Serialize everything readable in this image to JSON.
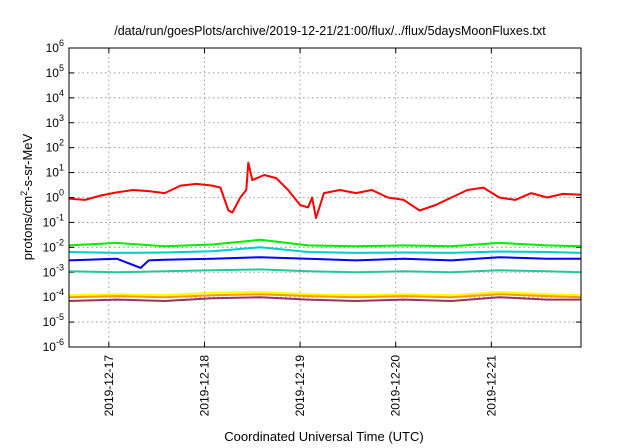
{
  "chart_data": {
    "type": "line",
    "title": "/data/run/goesPlots/archive/2019-12-21/21:00/flux/../flux/5daysMoonFluxes.txt",
    "xlabel": "Coordinated Universal Time (UTC)",
    "ylabel": {
      "base": "protons/cm",
      "sup": "2",
      "rest": "-s-sr-MeV"
    },
    "y_scale": "log",
    "ylim": [
      1e-06,
      1000000.0
    ],
    "y_ticks": [
      {
        "exp": "-6",
        "value": 1e-06
      },
      {
        "exp": "-5",
        "value": 1e-05
      },
      {
        "exp": "-4",
        "value": 0.0001
      },
      {
        "exp": "-3",
        "value": 0.001
      },
      {
        "exp": "-2",
        "value": 0.01
      },
      {
        "exp": "-1",
        "value": 0.1
      },
      {
        "exp": "0",
        "value": 1
      },
      {
        "exp": "1",
        "value": 10
      },
      {
        "exp": "2",
        "value": 100
      },
      {
        "exp": "3",
        "value": 1000
      },
      {
        "exp": "4",
        "value": 10000
      },
      {
        "exp": "5",
        "value": 100000
      },
      {
        "exp": "6",
        "value": 1000000
      }
    ],
    "x_ticks": [
      "2019-12-17",
      "2019-12-18",
      "2019-12-19",
      "2019-12-20",
      "2019-12-21"
    ],
    "xlim": [
      "2019-12-16 14:00",
      "2019-12-21 22:30"
    ],
    "grid": true,
    "legend": "none",
    "series": [
      {
        "color": "#ff0000",
        "x": [
          "2019-12-16 14:00",
          "2019-12-16 18:00",
          "2019-12-16 22:00",
          "2019-12-17 02:00",
          "2019-12-17 06:00",
          "2019-12-17 10:00",
          "2019-12-17 14:00",
          "2019-12-17 18:00",
          "2019-12-17 22:00",
          "2019-12-18 02:00",
          "2019-12-18 04:00",
          "2019-12-18 06:00",
          "2019-12-18 07:00",
          "2019-12-18 09:00",
          "2019-12-18 10:30",
          "2019-12-18 11:00",
          "2019-12-18 12:00",
          "2019-12-18 15:00",
          "2019-12-18 18:00",
          "2019-12-18 21:00",
          "2019-12-19 00:00",
          "2019-12-19 02:00",
          "2019-12-19 03:00",
          "2019-12-19 04:00",
          "2019-12-19 06:00",
          "2019-12-19 10:00",
          "2019-12-19 14:00",
          "2019-12-19 18:00",
          "2019-12-19 22:00",
          "2019-12-20 02:00",
          "2019-12-20 06:00",
          "2019-12-20 10:00",
          "2019-12-20 14:00",
          "2019-12-20 18:00",
          "2019-12-20 22:00",
          "2019-12-21 02:00",
          "2019-12-21 06:00",
          "2019-12-21 10:00",
          "2019-12-21 14:00",
          "2019-12-21 18:00",
          "2019-12-21 22:30"
        ],
        "y": [
          0.9,
          0.8,
          1.2,
          1.6,
          2.0,
          1.8,
          1.5,
          3.0,
          3.5,
          3.0,
          2.5,
          0.3,
          0.25,
          1.0,
          2.0,
          25.0,
          5.0,
          8.0,
          6.0,
          2.0,
          0.5,
          0.4,
          1.0,
          0.15,
          1.5,
          2.0,
          1.5,
          2.0,
          1.0,
          0.8,
          0.3,
          0.5,
          1.0,
          2.0,
          2.5,
          1.0,
          0.8,
          1.5,
          1.0,
          1.4,
          1.3
        ]
      },
      {
        "color": "#00ee00",
        "x": [
          "2019-12-16 14:00",
          "2019-12-17 02:00",
          "2019-12-17 14:00",
          "2019-12-18 02:00",
          "2019-12-18 14:00",
          "2019-12-19 02:00",
          "2019-12-19 14:00",
          "2019-12-20 02:00",
          "2019-12-20 14:00",
          "2019-12-21 02:00",
          "2019-12-21 14:00",
          "2019-12-21 22:30"
        ],
        "y": [
          0.012,
          0.015,
          0.011,
          0.013,
          0.02,
          0.012,
          0.011,
          0.012,
          0.011,
          0.015,
          0.012,
          0.011
        ]
      },
      {
        "color": "#00cccc",
        "x": [
          "2019-12-16 14:00",
          "2019-12-17 02:00",
          "2019-12-17 14:00",
          "2019-12-18 02:00",
          "2019-12-18 14:00",
          "2019-12-19 02:00",
          "2019-12-19 14:00",
          "2019-12-20 02:00",
          "2019-12-20 14:00",
          "2019-12-21 02:00",
          "2019-12-21 14:00",
          "2019-12-21 22:30"
        ],
        "y": [
          0.0065,
          0.006,
          0.0062,
          0.007,
          0.01,
          0.0065,
          0.006,
          0.0062,
          0.006,
          0.0068,
          0.0065,
          0.006
        ]
      },
      {
        "color": "#0000ff",
        "x": [
          "2019-12-16 14:00",
          "2019-12-17 02:00",
          "2019-12-17 08:00",
          "2019-12-17 10:00",
          "2019-12-17 14:00",
          "2019-12-18 02:00",
          "2019-12-18 14:00",
          "2019-12-19 02:00",
          "2019-12-19 14:00",
          "2019-12-20 02:00",
          "2019-12-20 14:00",
          "2019-12-21 02:00",
          "2019-12-21 14:00",
          "2019-12-21 22:30"
        ],
        "y": [
          0.003,
          0.0035,
          0.0015,
          0.003,
          0.0032,
          0.0035,
          0.004,
          0.0035,
          0.003,
          0.0035,
          0.003,
          0.004,
          0.0035,
          0.0035
        ]
      },
      {
        "color": "#20c8a0",
        "x": [
          "2019-12-16 14:00",
          "2019-12-17 02:00",
          "2019-12-17 14:00",
          "2019-12-18 02:00",
          "2019-12-18 14:00",
          "2019-12-19 02:00",
          "2019-12-19 14:00",
          "2019-12-20 02:00",
          "2019-12-20 14:00",
          "2019-12-21 02:00",
          "2019-12-21 14:00",
          "2019-12-21 22:30"
        ],
        "y": [
          0.0011,
          0.001,
          0.0011,
          0.0012,
          0.0013,
          0.0011,
          0.001,
          0.0011,
          0.001,
          0.0012,
          0.0011,
          0.001
        ]
      },
      {
        "color": "#ffff00",
        "x": [
          "2019-12-16 14:00",
          "2019-12-17 02:00",
          "2019-12-17 14:00",
          "2019-12-18 02:00",
          "2019-12-18 14:00",
          "2019-12-19 02:00",
          "2019-12-19 14:00",
          "2019-12-20 02:00",
          "2019-12-20 14:00",
          "2019-12-21 02:00",
          "2019-12-21 14:00",
          "2019-12-21 22:30"
        ],
        "y": [
          0.00012,
          0.00013,
          0.00012,
          0.00015,
          0.00016,
          0.00013,
          0.00012,
          0.00013,
          0.00012,
          0.00016,
          0.00013,
          0.00012
        ]
      },
      {
        "color": "#ff9900",
        "x": [
          "2019-12-16 14:00",
          "2019-12-17 02:00",
          "2019-12-17 14:00",
          "2019-12-18 02:00",
          "2019-12-18 14:00",
          "2019-12-19 02:00",
          "2019-12-19 14:00",
          "2019-12-20 02:00",
          "2019-12-20 14:00",
          "2019-12-21 02:00",
          "2019-12-21 14:00",
          "2019-12-21 22:30"
        ],
        "y": [
          0.0001,
          0.00011,
          0.0001,
          0.00012,
          0.00013,
          0.00011,
          0.0001,
          0.00011,
          0.0001,
          0.00013,
          0.00011,
          0.0001
        ]
      },
      {
        "color": "#993366",
        "x": [
          "2019-12-16 14:00",
          "2019-12-17 02:00",
          "2019-12-17 14:00",
          "2019-12-18 02:00",
          "2019-12-18 14:00",
          "2019-12-19 02:00",
          "2019-12-19 14:00",
          "2019-12-20 02:00",
          "2019-12-20 14:00",
          "2019-12-21 02:00",
          "2019-12-21 14:00",
          "2019-12-21 22:30"
        ],
        "y": [
          7e-05,
          8e-05,
          7e-05,
          9e-05,
          0.0001,
          8e-05,
          7e-05,
          8e-05,
          7e-05,
          0.0001,
          8e-05,
          8e-05
        ]
      }
    ]
  }
}
